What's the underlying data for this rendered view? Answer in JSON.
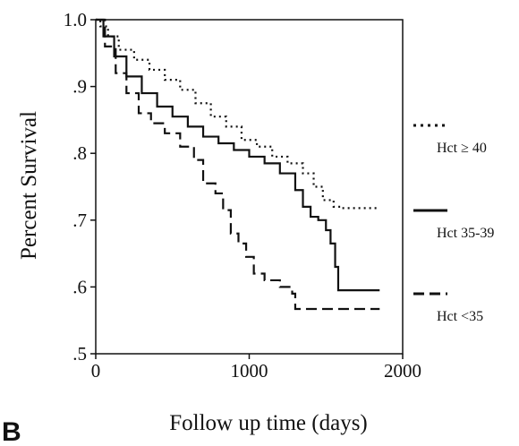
{
  "figure": {
    "panel_label": "B"
  },
  "chart_data": {
    "type": "line",
    "xlabel": "Follow up time (days)",
    "ylabel": "Percent Survival",
    "xlim": [
      0,
      2000
    ],
    "ylim": [
      0.5,
      1.0
    ],
    "x_ticks": [
      {
        "value": 0,
        "label": "0"
      },
      {
        "value": 1000,
        "label": "1000"
      },
      {
        "value": 2000,
        "label": "2000"
      }
    ],
    "y_ticks": [
      {
        "value": 1.0,
        "label": "1.0"
      },
      {
        "value": 0.9,
        "label": ".9"
      },
      {
        "value": 0.8,
        "label": ".8"
      },
      {
        "value": 0.7,
        "label": ".7"
      },
      {
        "value": 0.6,
        "label": ".6"
      },
      {
        "value": 0.5,
        "label": ".5"
      }
    ],
    "grid": false,
    "legend_position": "right",
    "series": [
      {
        "name": "Hct ≥ 40",
        "style": "dotted",
        "color": "#111111",
        "points": [
          [
            0,
            1.0
          ],
          [
            30,
            0.99
          ],
          [
            80,
            0.975
          ],
          [
            150,
            0.955
          ],
          [
            250,
            0.94
          ],
          [
            350,
            0.925
          ],
          [
            450,
            0.91
          ],
          [
            550,
            0.895
          ],
          [
            650,
            0.875
          ],
          [
            750,
            0.855
          ],
          [
            850,
            0.84
          ],
          [
            950,
            0.82
          ],
          [
            1050,
            0.81
          ],
          [
            1150,
            0.795
          ],
          [
            1250,
            0.785
          ],
          [
            1350,
            0.77
          ],
          [
            1420,
            0.75
          ],
          [
            1480,
            0.73
          ],
          [
            1550,
            0.72
          ],
          [
            1600,
            0.718
          ],
          [
            1850,
            0.718
          ]
        ]
      },
      {
        "name": "Hct 35-39",
        "style": "solid",
        "color": "#111111",
        "points": [
          [
            0,
            1.0
          ],
          [
            50,
            0.975
          ],
          [
            120,
            0.945
          ],
          [
            200,
            0.915
          ],
          [
            300,
            0.89
          ],
          [
            400,
            0.87
          ],
          [
            500,
            0.855
          ],
          [
            600,
            0.84
          ],
          [
            700,
            0.825
          ],
          [
            800,
            0.815
          ],
          [
            900,
            0.805
          ],
          [
            1000,
            0.795
          ],
          [
            1100,
            0.785
          ],
          [
            1200,
            0.77
          ],
          [
            1300,
            0.745
          ],
          [
            1350,
            0.72
          ],
          [
            1400,
            0.705
          ],
          [
            1450,
            0.7
          ],
          [
            1480,
            0.7
          ],
          [
            1500,
            0.685
          ],
          [
            1530,
            0.665
          ],
          [
            1560,
            0.63
          ],
          [
            1580,
            0.595
          ],
          [
            1850,
            0.595
          ]
        ]
      },
      {
        "name": "Hct <35",
        "style": "dashed",
        "color": "#111111",
        "points": [
          [
            0,
            1.0
          ],
          [
            60,
            0.96
          ],
          [
            130,
            0.92
          ],
          [
            200,
            0.89
          ],
          [
            280,
            0.86
          ],
          [
            360,
            0.845
          ],
          [
            450,
            0.83
          ],
          [
            550,
            0.81
          ],
          [
            640,
            0.79
          ],
          [
            700,
            0.755
          ],
          [
            780,
            0.74
          ],
          [
            830,
            0.715
          ],
          [
            880,
            0.68
          ],
          [
            930,
            0.665
          ],
          [
            980,
            0.645
          ],
          [
            1030,
            0.62
          ],
          [
            1100,
            0.61
          ],
          [
            1200,
            0.6
          ],
          [
            1280,
            0.59
          ],
          [
            1300,
            0.567
          ],
          [
            1850,
            0.567
          ]
        ]
      }
    ]
  }
}
